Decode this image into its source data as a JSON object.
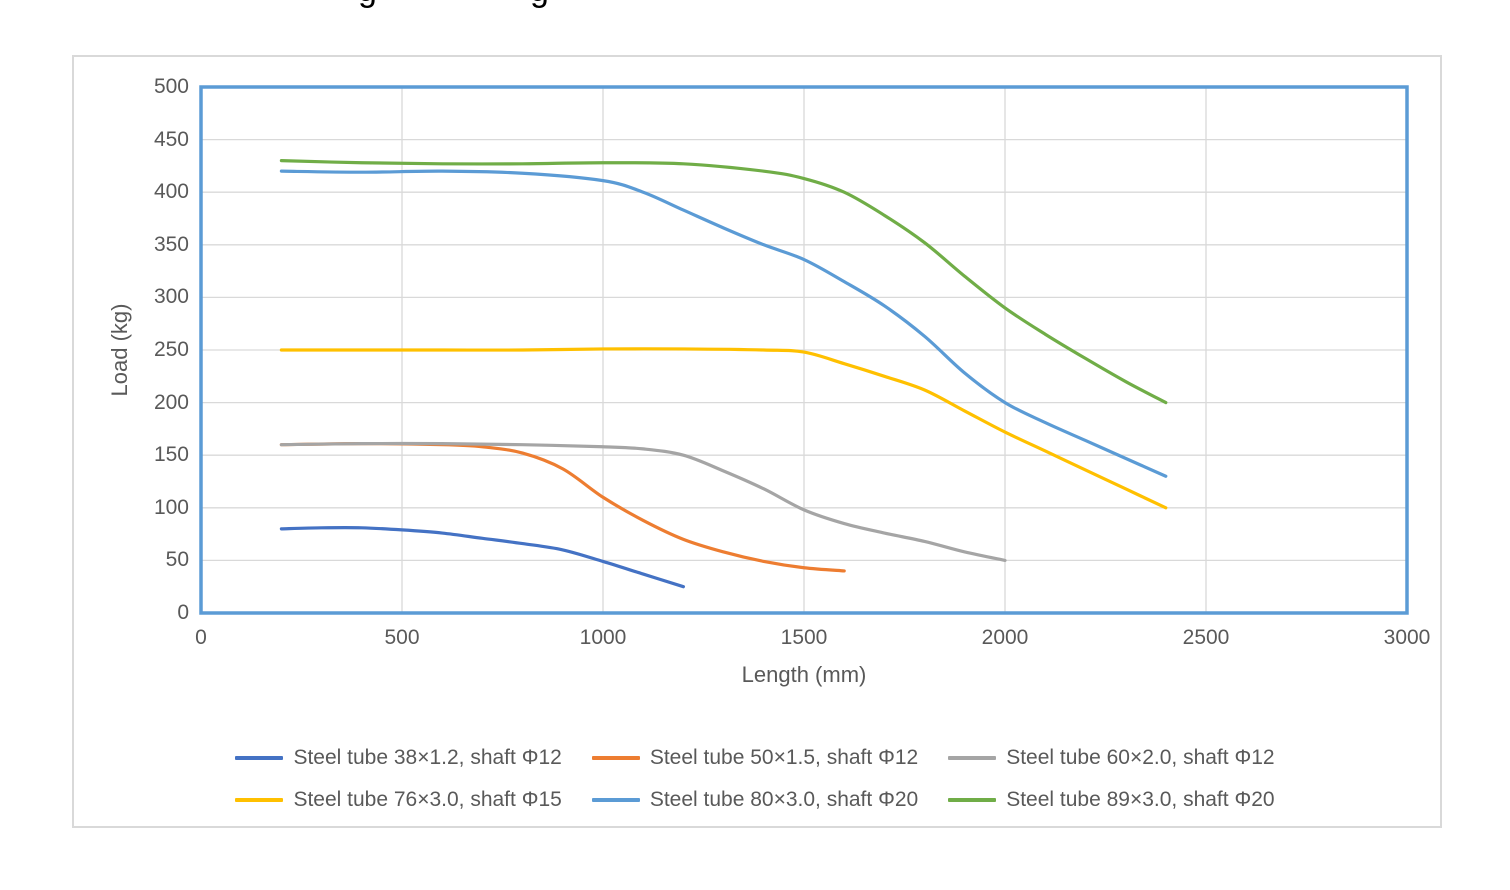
{
  "figure": {
    "background": "#FFFFFF",
    "border_color": "#D9D9D9",
    "cropped_title_descenders": [
      "g",
      "g"
    ]
  },
  "chart_data": {
    "type": "line",
    "title": "",
    "xlabel": "Length (mm)",
    "ylabel": "Load (kg)",
    "xlim": [
      0,
      3000
    ],
    "ylim": [
      0,
      500
    ],
    "x_ticks": [
      0,
      500,
      1000,
      1500,
      2000,
      2500,
      3000
    ],
    "y_ticks": [
      0,
      50,
      100,
      150,
      200,
      250,
      300,
      350,
      400,
      450,
      500
    ],
    "grid": true,
    "legend_position": "bottom",
    "plot_border_color": "#5B9BD5",
    "gridline_color": "#D9D9D9",
    "axis_text_color": "#595959",
    "series": [
      {
        "name": "Steel tube 38×1.2, shaft Φ12",
        "color": "#4472C4",
        "x": [
          200,
          300,
          400,
          500,
          600,
          700,
          800,
          900,
          1000,
          1100,
          1200
        ],
        "y": [
          80,
          81,
          81,
          79,
          76,
          71,
          66,
          60,
          49,
          37,
          25
        ]
      },
      {
        "name": "Steel tube 50×1.5, shaft Φ12",
        "color": "#ED7D31",
        "x": [
          200,
          400,
          600,
          700,
          800,
          900,
          1000,
          1100,
          1200,
          1300,
          1400,
          1500,
          1600
        ],
        "y": [
          160,
          161,
          160,
          158,
          152,
          137,
          110,
          88,
          70,
          58,
          49,
          43,
          40
        ]
      },
      {
        "name": "Steel tube 60×2.0, shaft Φ12",
        "color": "#A5A5A5",
        "x": [
          200,
          400,
          600,
          800,
          1000,
          1100,
          1200,
          1300,
          1400,
          1500,
          1600,
          1700,
          1800,
          1900,
          2000
        ],
        "y": [
          160,
          161,
          161,
          160,
          158,
          156,
          150,
          135,
          118,
          98,
          85,
          76,
          68,
          58,
          50
        ]
      },
      {
        "name": "Steel tube 76×3.0, shaft Φ15",
        "color": "#FFC000",
        "x": [
          200,
          400,
          600,
          800,
          1000,
          1200,
          1400,
          1500,
          1600,
          1700,
          1800,
          1900,
          2000,
          2100,
          2200,
          2300,
          2400
        ],
        "y": [
          250,
          250,
          250,
          250,
          251,
          251,
          250,
          248,
          237,
          225,
          212,
          192,
          172,
          154,
          136,
          118,
          100
        ]
      },
      {
        "name": "Steel tube 80×3.0, shaft Φ20",
        "color": "#5B9BD5",
        "x": [
          200,
          400,
          600,
          800,
          1000,
          1100,
          1200,
          1300,
          1400,
          1500,
          1600,
          1700,
          1800,
          1900,
          2000,
          2100,
          2200,
          2300,
          2400
        ],
        "y": [
          420,
          419,
          420,
          418,
          411,
          400,
          383,
          366,
          350,
          336,
          315,
          292,
          263,
          228,
          200,
          181,
          164,
          147,
          130
        ]
      },
      {
        "name": "Steel tube 89×3.0, shaft Φ20",
        "color": "#70AD47",
        "x": [
          200,
          400,
          600,
          800,
          1000,
          1200,
          1400,
          1500,
          1600,
          1700,
          1800,
          1900,
          2000,
          2100,
          2200,
          2300,
          2400
        ],
        "y": [
          430,
          428,
          427,
          427,
          428,
          427,
          420,
          413,
          400,
          378,
          352,
          320,
          290,
          265,
          242,
          220,
          200
        ]
      }
    ]
  }
}
